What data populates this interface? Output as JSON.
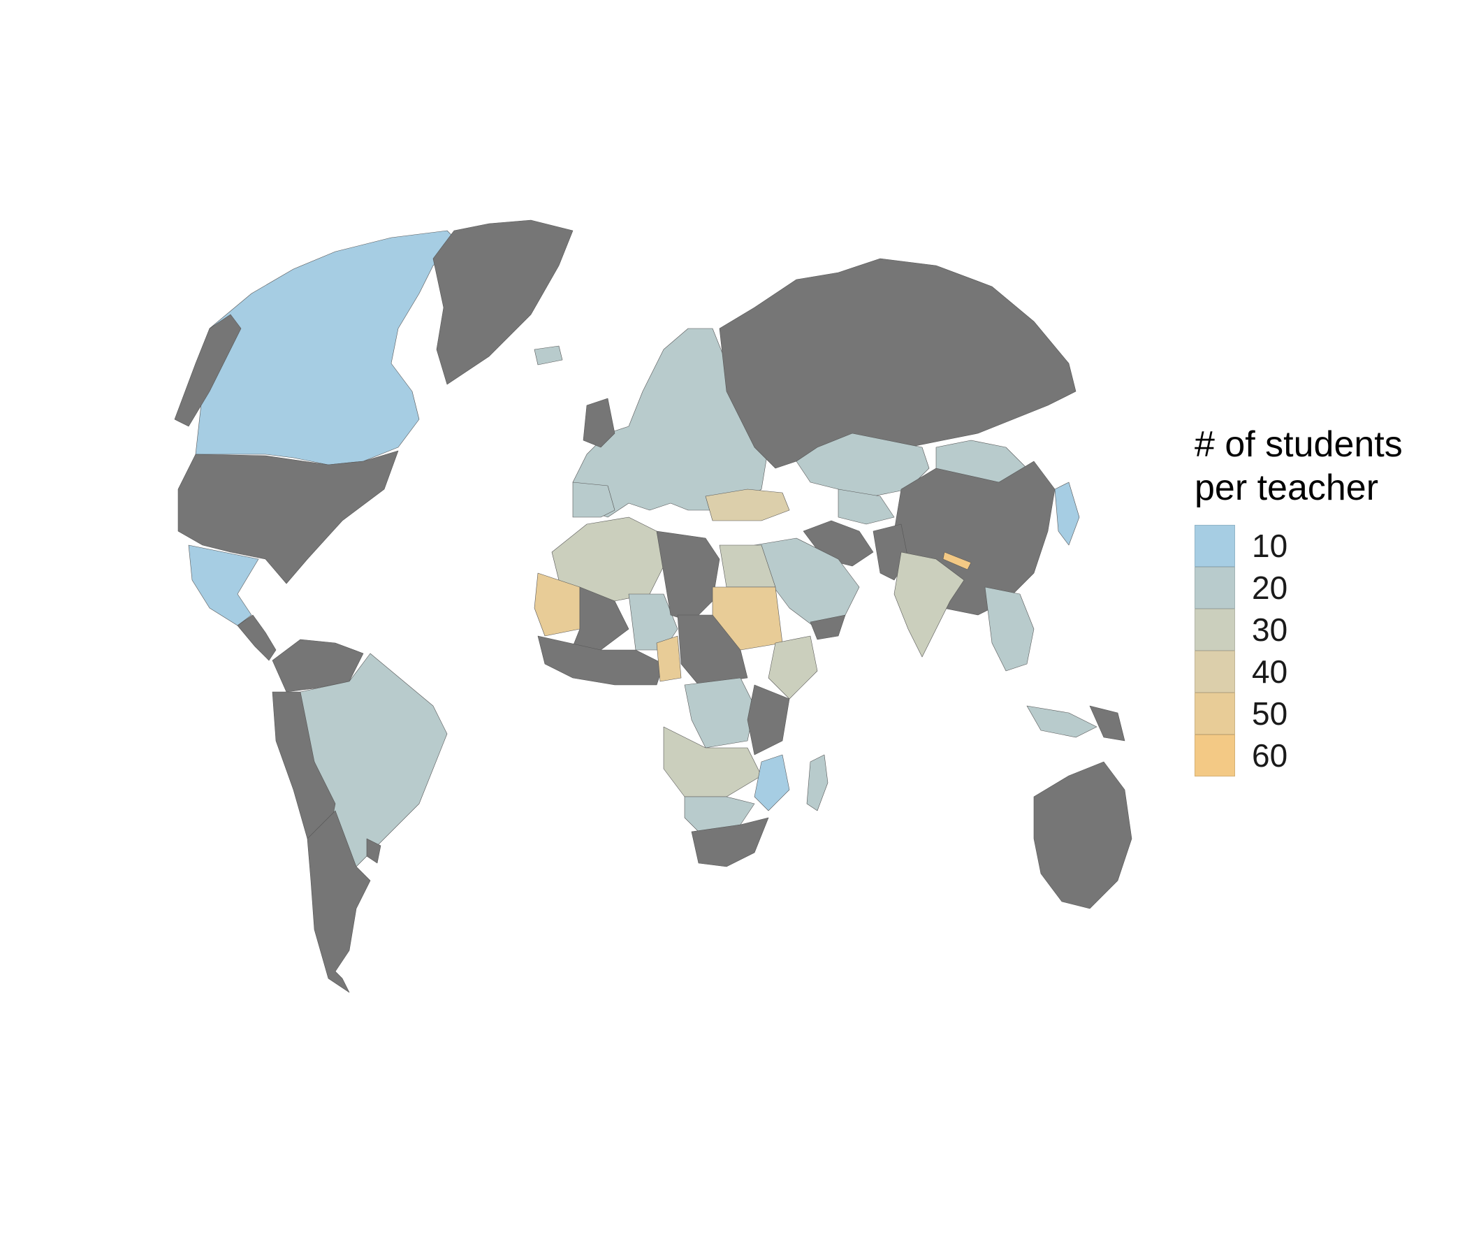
{
  "legend": {
    "title_line1": "# of students",
    "title_line2": "per teacher",
    "items": [
      {
        "label": "10",
        "color": "#a6cde3"
      },
      {
        "label": "20",
        "color": "#b8cbcc"
      },
      {
        "label": "30",
        "color": "#cbcfbd"
      },
      {
        "label": "40",
        "color": "#dccfab"
      },
      {
        "label": "50",
        "color": "#e8cc97"
      },
      {
        "label": "60",
        "color": "#f3c985"
      }
    ]
  },
  "colors": {
    "no_data": "#767676",
    "background": "#ffffff"
  },
  "regions": [
    {
      "id": "canada",
      "category": "10"
    },
    {
      "id": "usa",
      "category": "no-data"
    },
    {
      "id": "mexico",
      "category": "10"
    },
    {
      "id": "greenland",
      "category": "no-data"
    },
    {
      "id": "brazil",
      "category": "20"
    },
    {
      "id": "argentina",
      "category": "no-data"
    },
    {
      "id": "russia",
      "category": "no-data"
    },
    {
      "id": "china",
      "category": "no-data"
    },
    {
      "id": "kazakhstan",
      "category": "20"
    },
    {
      "id": "mongolia",
      "category": "20"
    },
    {
      "id": "india",
      "category": "30"
    },
    {
      "id": "australia",
      "category": "no-data"
    },
    {
      "id": "algeria",
      "category": "30"
    },
    {
      "id": "libya",
      "category": "no-data"
    },
    {
      "id": "egypt",
      "category": "30"
    },
    {
      "id": "sudan",
      "category": "50"
    },
    {
      "id": "mauritania",
      "category": "50"
    },
    {
      "id": "mali",
      "category": "no-data"
    },
    {
      "id": "niger",
      "category": "20"
    },
    {
      "id": "dr-congo",
      "category": "20"
    },
    {
      "id": "south-africa",
      "category": "no-data"
    },
    {
      "id": "saudi-arabia",
      "category": "20"
    },
    {
      "id": "iran",
      "category": "no-data"
    },
    {
      "id": "turkey",
      "category": "40"
    },
    {
      "id": "europe",
      "category": "20"
    },
    {
      "id": "nepal",
      "category": "60"
    },
    {
      "id": "madagascar",
      "category": "20"
    }
  ]
}
